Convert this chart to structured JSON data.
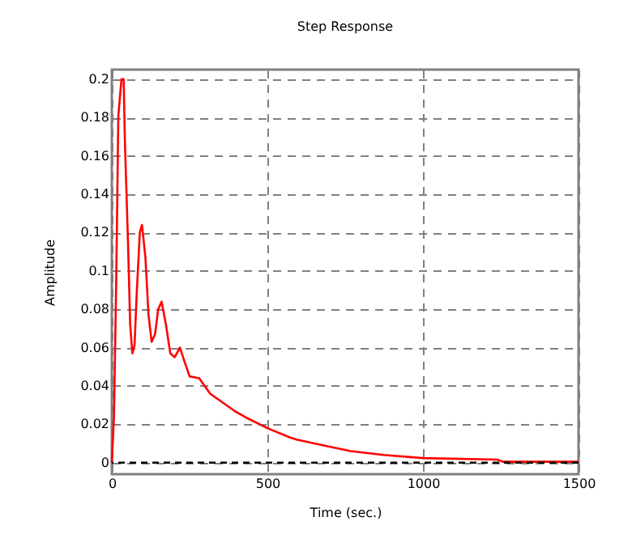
{
  "chart_data": {
    "type": "line",
    "title": "Step Response",
    "xlabel": "Time (sec.)",
    "ylabel": "Amplitude",
    "xlim": [
      0,
      1500
    ],
    "xticks": [
      0,
      500,
      1000,
      1500
    ],
    "ylim": [
      -0.006,
      0.205
    ],
    "yticks": [
      0,
      0.02,
      0.04,
      0.06,
      0.08,
      0.1,
      0.12,
      0.14,
      0.16,
      0.18,
      0.2
    ],
    "grid": true,
    "line_style": "solid",
    "marker": "none",
    "ref_lines": [
      {
        "axis": "y",
        "value": 0,
        "color": "#000000",
        "line_style": "dashed"
      }
    ],
    "series": [
      {
        "color": "#ff0000",
        "x": [
          0,
          7,
          14,
          21,
          31,
          38,
          42,
          52,
          59,
          66,
          73,
          80,
          90,
          97,
          108,
          118,
          128,
          139,
          149,
          160,
          174,
          188,
          202,
          219,
          233,
          250,
          281,
          316,
          351,
          394,
          438,
          500,
          575,
          594,
          681,
          768,
          873,
          1000,
          1239,
          1256,
          1500
        ],
        "values": [
          0,
          0.024,
          0.093,
          0.181,
          0.2,
          0.2,
          0.168,
          0.115,
          0.072,
          0.057,
          0.061,
          0.088,
          0.12,
          0.124,
          0.107,
          0.077,
          0.063,
          0.067,
          0.08,
          0.084,
          0.072,
          0.057,
          0.055,
          0.06,
          0.053,
          0.045,
          0.044,
          0.036,
          0.032,
          0.027,
          0.023,
          0.018,
          0.013,
          0.012,
          0.009,
          0.006,
          0.004,
          0.0024,
          0.0016,
          0.0005,
          0.0005
        ]
      }
    ]
  }
}
